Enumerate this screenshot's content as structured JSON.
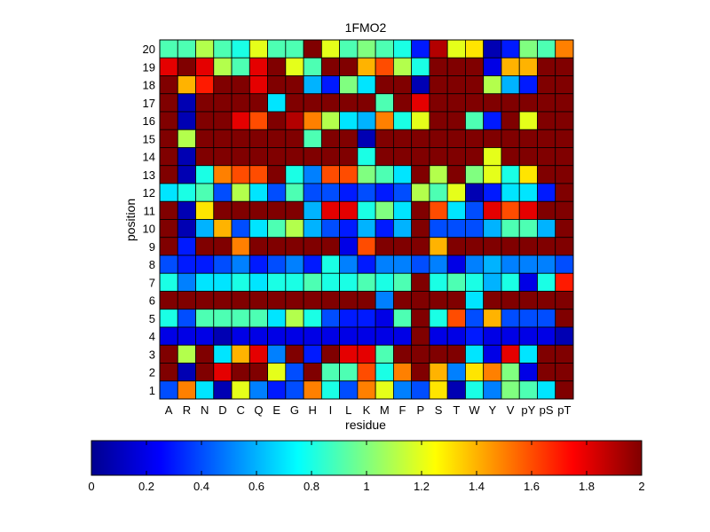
{
  "chart_data": {
    "type": "heatmap",
    "title": "1FMO2",
    "xlabel": "residue",
    "ylabel": "position",
    "x_categories": [
      "A",
      "R",
      "N",
      "D",
      "C",
      "Q",
      "E",
      "G",
      "H",
      "I",
      "L",
      "K",
      "M",
      "F",
      "P",
      "S",
      "T",
      "W",
      "Y",
      "V",
      "pY",
      "pS",
      "pT"
    ],
    "y_categories": [
      "1",
      "2",
      "3",
      "4",
      "5",
      "6",
      "7",
      "8",
      "9",
      "10",
      "11",
      "12",
      "13",
      "14",
      "15",
      "16",
      "17",
      "18",
      "19",
      "20"
    ],
    "color_range": [
      0,
      2
    ],
    "colorbar_ticks": [
      "0",
      "0.2",
      "0.4",
      "0.6",
      "0.8",
      "1",
      "1.2",
      "1.4",
      "1.6",
      "1.8",
      "2"
    ],
    "colormap": "jet",
    "grid": true,
    "values_by_position_top_to_bottom": {
      "20": [
        0.9,
        0.9,
        1.1,
        0.9,
        0.8,
        1.2,
        0.9,
        0.9,
        2.0,
        1.2,
        0.9,
        1.0,
        0.9,
        0.8,
        0.3,
        1.9,
        1.2,
        1.3,
        0.1,
        0.3,
        1.0,
        0.9,
        1.5
      ],
      "19": [
        1.8,
        2.0,
        1.8,
        1.1,
        0.9,
        1.8,
        2.0,
        1.2,
        0.9,
        2.0,
        2.0,
        1.4,
        1.6,
        1.1,
        0.8,
        2.0,
        2.0,
        2.0,
        0.2,
        1.4,
        1.4,
        2.0,
        2.0
      ],
      "18": [
        2.0,
        1.4,
        1.7,
        2.0,
        2.0,
        1.8,
        2.0,
        2.0,
        0.6,
        0.3,
        1.0,
        0.7,
        2.0,
        2.0,
        0.1,
        2.0,
        2.0,
        2.0,
        1.1,
        0.6,
        0.3,
        2.0,
        2.0
      ],
      "17": [
        2.0,
        0.1,
        2.0,
        2.0,
        2.0,
        2.0,
        0.7,
        2.0,
        2.0,
        2.0,
        2.0,
        2.0,
        0.9,
        2.0,
        1.8,
        2.0,
        2.0,
        2.0,
        2.0,
        2.0,
        2.0,
        2.0,
        2.0
      ],
      "16": [
        2.0,
        0.1,
        2.0,
        2.0,
        1.8,
        1.6,
        2.0,
        1.9,
        1.5,
        1.1,
        0.7,
        0.6,
        1.5,
        0.8,
        1.2,
        2.0,
        2.0,
        0.9,
        0.3,
        2.0,
        1.2,
        2.0,
        2.0
      ],
      "15": [
        2.0,
        1.1,
        2.0,
        2.0,
        2.0,
        2.0,
        2.0,
        2.0,
        0.9,
        2.0,
        2.0,
        0.1,
        2.0,
        2.0,
        2.0,
        2.0,
        2.0,
        2.0,
        2.0,
        2.0,
        2.0,
        2.0,
        2.0
      ],
      "14": [
        2.0,
        0.1,
        2.0,
        2.0,
        2.0,
        2.0,
        2.0,
        2.0,
        2.0,
        2.0,
        2.0,
        0.8,
        2.0,
        2.0,
        2.0,
        2.0,
        2.0,
        2.0,
        1.2,
        2.0,
        2.0,
        2.0,
        2.0
      ],
      "13": [
        2.0,
        0.1,
        0.8,
        1.5,
        1.6,
        1.6,
        2.0,
        0.8,
        0.5,
        1.6,
        1.6,
        1.0,
        0.9,
        0.7,
        2.0,
        1.1,
        2.0,
        1.0,
        1.2,
        0.8,
        1.3,
        2.0,
        2.0
      ],
      "12": [
        0.7,
        0.8,
        0.9,
        0.4,
        1.1,
        0.7,
        0.4,
        0.9,
        0.4,
        0.4,
        0.3,
        0.4,
        0.3,
        0.4,
        1.1,
        0.9,
        1.2,
        0.1,
        0.3,
        0.7,
        0.7,
        0.3,
        2.0
      ],
      "11": [
        2.0,
        0.1,
        1.3,
        2.0,
        2.0,
        2.0,
        2.0,
        2.0,
        0.6,
        1.8,
        1.8,
        0.8,
        1.0,
        0.7,
        2.0,
        1.6,
        0.7,
        0.4,
        1.8,
        1.6,
        1.8,
        2.0,
        2.0
      ],
      "10": [
        2.0,
        0.1,
        0.6,
        1.4,
        0.4,
        0.7,
        0.9,
        1.1,
        0.6,
        0.4,
        0.3,
        0.6,
        0.3,
        0.6,
        2.0,
        0.4,
        0.4,
        0.4,
        0.6,
        0.9,
        0.9,
        0.6,
        2.0
      ],
      "9": [
        2.0,
        0.3,
        2.0,
        2.0,
        1.5,
        2.0,
        2.0,
        2.0,
        2.0,
        2.0,
        0.2,
        1.6,
        2.0,
        2.0,
        2.0,
        1.4,
        2.0,
        2.0,
        2.0,
        2.0,
        2.0,
        2.0,
        2.0
      ],
      "8": [
        0.4,
        0.3,
        0.3,
        0.4,
        0.5,
        0.3,
        0.4,
        0.5,
        0.3,
        0.8,
        0.5,
        0.3,
        0.5,
        0.5,
        0.4,
        0.5,
        0.2,
        0.5,
        0.6,
        0.5,
        0.5,
        0.5,
        0.4
      ],
      "7": [
        0.8,
        0.5,
        0.7,
        0.7,
        0.8,
        0.7,
        0.8,
        0.8,
        0.9,
        0.8,
        0.8,
        0.9,
        0.8,
        0.9,
        2.0,
        0.8,
        0.9,
        0.8,
        0.6,
        0.8,
        0.2,
        0.8,
        1.7
      ],
      "6": [
        2.0,
        2.0,
        2.0,
        2.0,
        2.0,
        2.0,
        2.0,
        2.0,
        2.0,
        2.0,
        2.0,
        2.0,
        0.5,
        2.0,
        2.0,
        2.0,
        2.0,
        0.7,
        2.0,
        2.0,
        2.0,
        2.0,
        2.0
      ],
      "5": [
        0.8,
        0.4,
        0.9,
        0.9,
        0.9,
        0.9,
        0.7,
        1.1,
        0.8,
        0.4,
        0.3,
        0.3,
        0.2,
        0.9,
        2.0,
        0.8,
        1.6,
        0.4,
        1.4,
        0.4,
        0.4,
        0.4,
        2.0
      ],
      "4": [
        0.2,
        0.2,
        0.2,
        0.1,
        0.2,
        0.2,
        0.2,
        0.2,
        0.2,
        0.2,
        0.2,
        0.2,
        0.2,
        0.2,
        2.0,
        0.2,
        0.2,
        0.3,
        0.2,
        0.2,
        0.2,
        0.2,
        0.1
      ],
      "3": [
        2.0,
        1.1,
        2.0,
        0.7,
        1.4,
        1.8,
        0.5,
        2.0,
        0.3,
        2.0,
        1.8,
        1.8,
        0.9,
        2.0,
        2.0,
        2.0,
        2.0,
        0.7,
        0.2,
        1.8,
        0.7,
        2.0,
        2.0
      ],
      "2": [
        2.0,
        0.1,
        2.0,
        1.8,
        2.0,
        2.0,
        1.2,
        0.4,
        2.0,
        0.9,
        0.9,
        1.6,
        0.8,
        1.5,
        2.0,
        1.4,
        0.5,
        1.3,
        1.5,
        1.0,
        0.2,
        2.0,
        2.0
      ],
      "1": [
        0.4,
        1.5,
        0.7,
        0.1,
        1.2,
        0.5,
        0.3,
        0.4,
        1.5,
        0.8,
        0.4,
        1.5,
        1.2,
        0.5,
        0.4,
        1.3,
        0.1,
        0.8,
        0.5,
        1.0,
        0.9,
        0.7,
        2.0
      ]
    }
  }
}
